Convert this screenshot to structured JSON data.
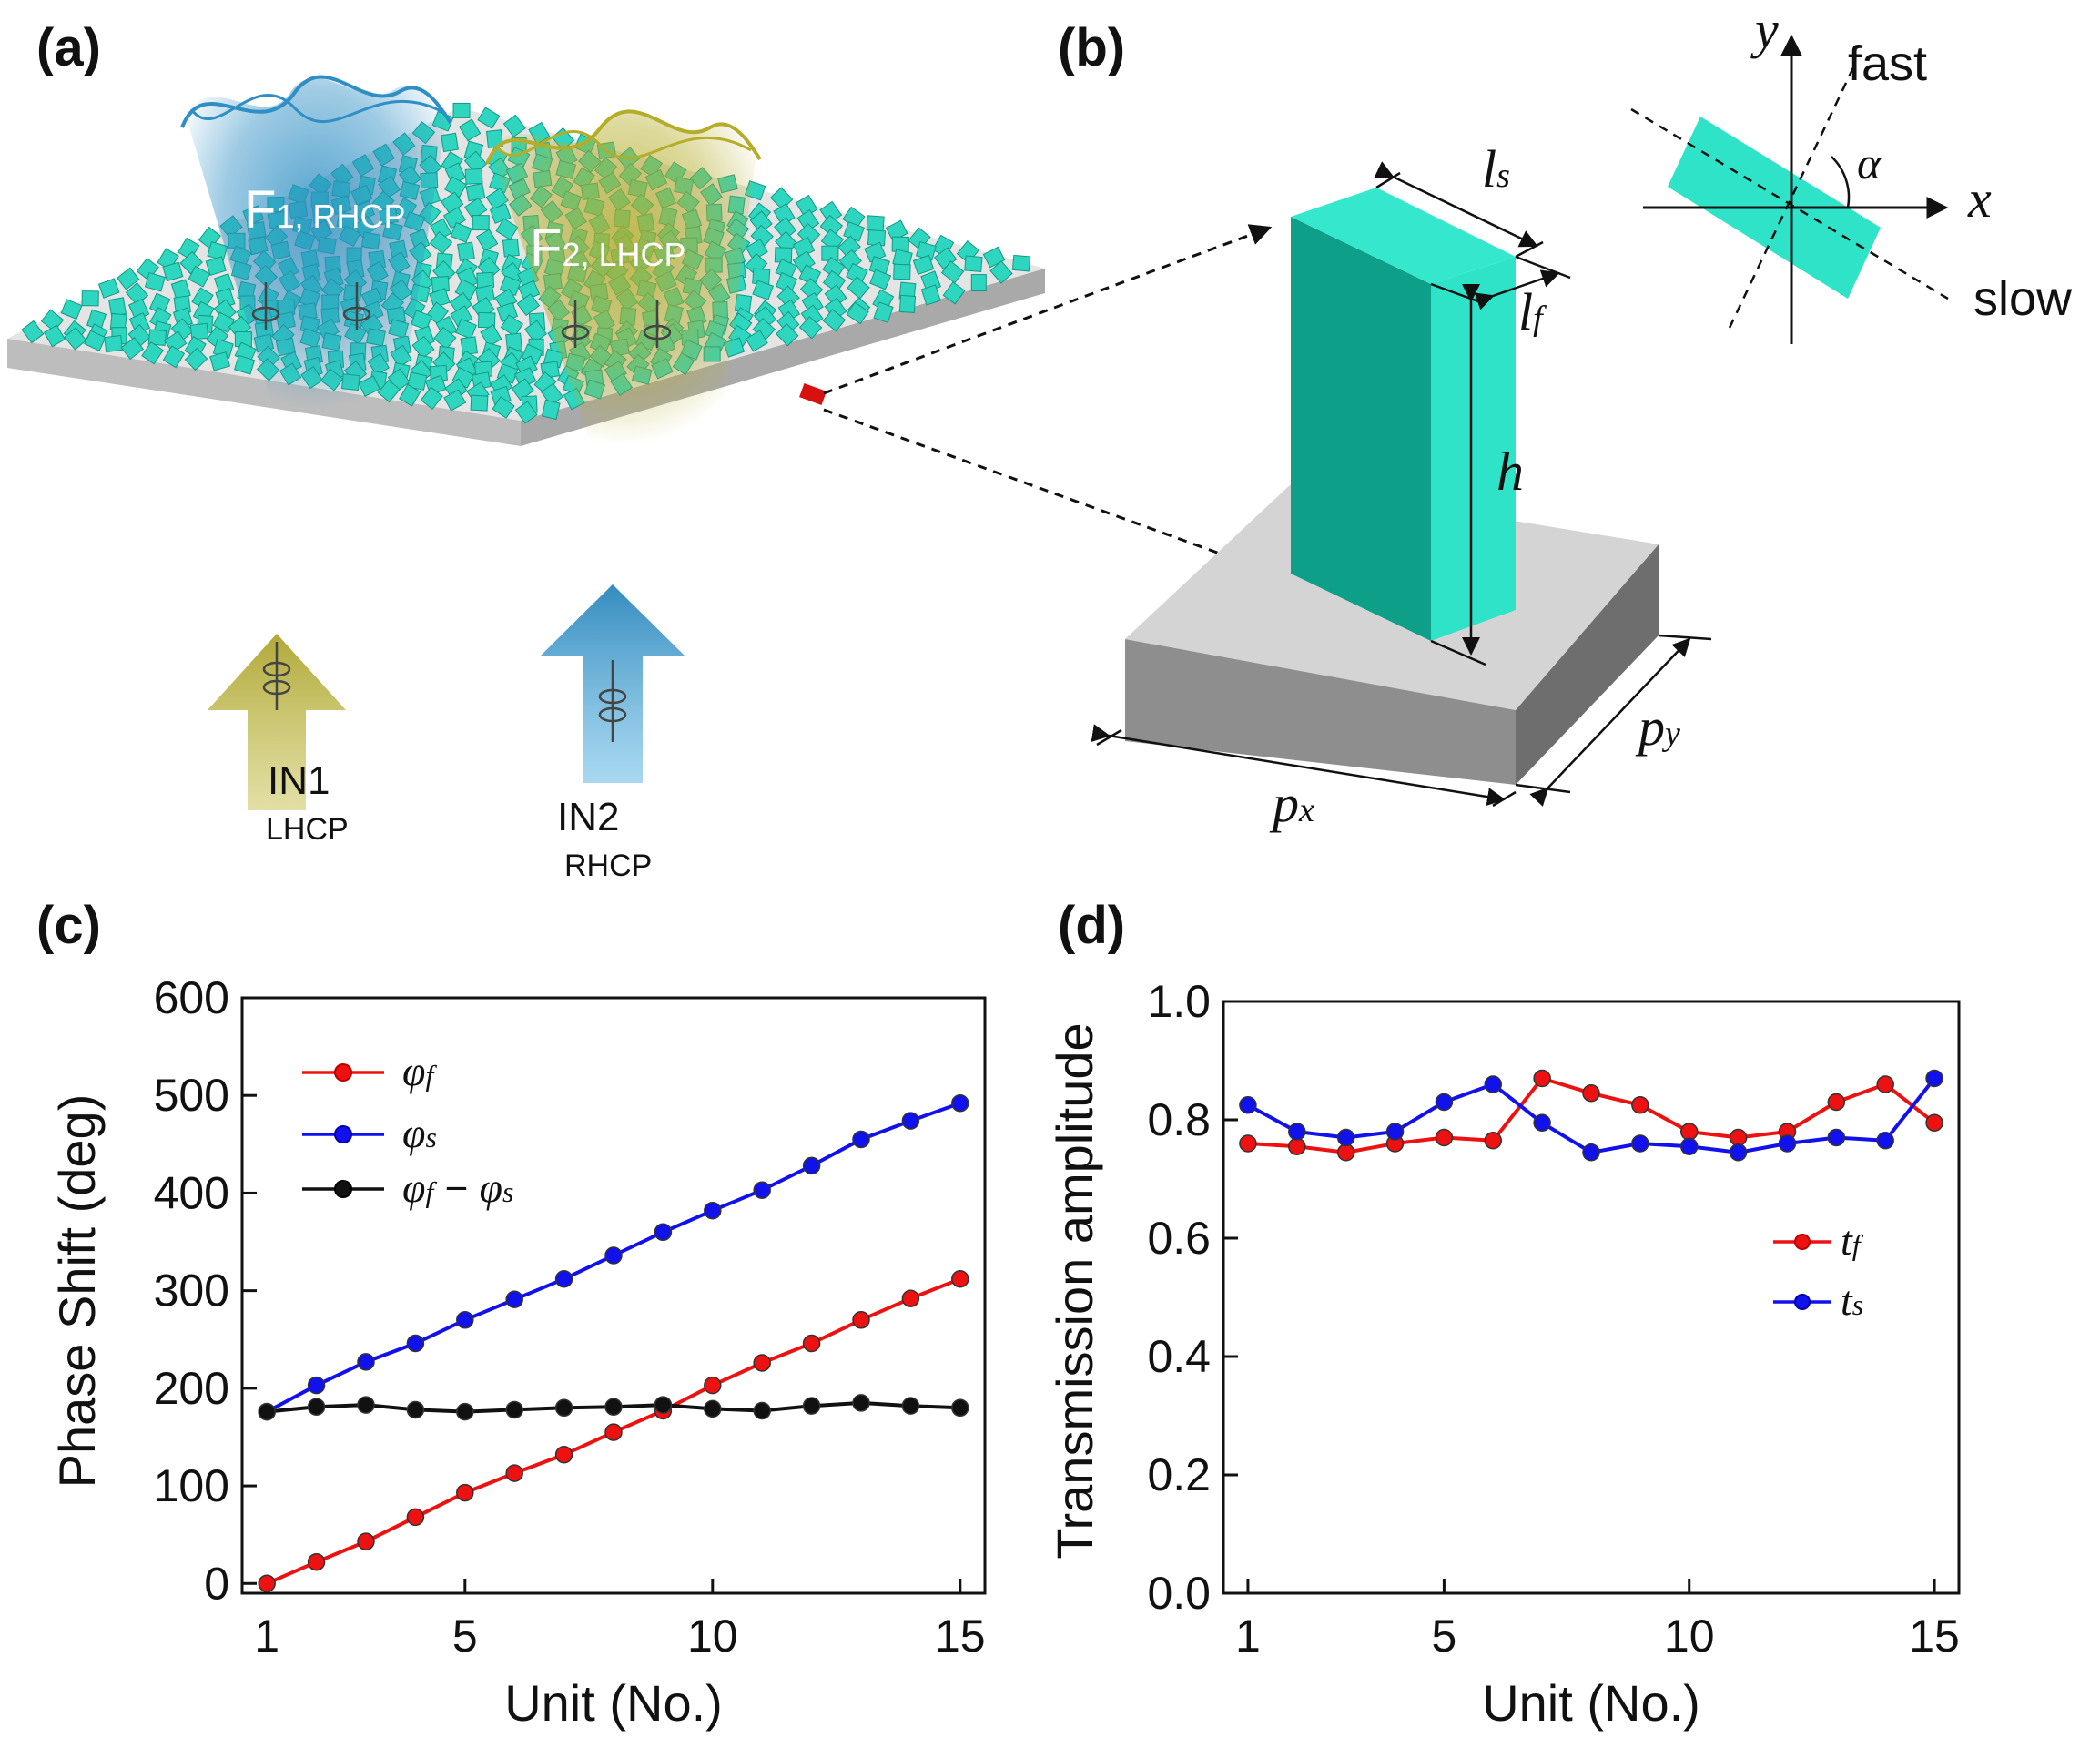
{
  "panel_labels": {
    "a": "(a)",
    "b": "(b)",
    "c": "(c)",
    "d": "(d)"
  },
  "panel_a": {
    "beam1": {
      "main": "F",
      "sub": "1, RHCP"
    },
    "beam2": {
      "main": "F",
      "sub": "2, LHCP"
    },
    "input1": {
      "name": "IN1",
      "pol": "LHCP"
    },
    "input2": {
      "name": "IN2",
      "pol": "RHCP"
    },
    "colors": {
      "pillar": "#2ed6bf",
      "beam1": "#2f8fc4",
      "beam2": "#b5ad2a",
      "substrate": "#cfcfcf",
      "highlight": "#d81010"
    }
  },
  "panel_b": {
    "labels": {
      "ls_main": "l",
      "ls_sub": "s",
      "lf_main": "l",
      "lf_sub": "f",
      "h": "h",
      "px_main": "p",
      "px_sub": "x",
      "py_main": "p",
      "py_sub": "y"
    },
    "axes": {
      "y": "y",
      "x": "x",
      "fast": "fast",
      "slow": "slow",
      "alpha": "α"
    }
  },
  "chart_data": [
    {
      "type": "line",
      "panel": "c",
      "xlabel": "Unit (No.)",
      "ylabel": "Phase Shift (deg)",
      "xlim": [
        0.5,
        15.5
      ],
      "ylim": [
        -10,
        600
      ],
      "xticks": [
        1,
        5,
        10,
        15
      ],
      "yticks": [
        0,
        100,
        200,
        300,
        400,
        500,
        600
      ],
      "grid": false,
      "legend": "top-left",
      "x": [
        1,
        2,
        3,
        4,
        5,
        6,
        7,
        8,
        9,
        10,
        11,
        12,
        13,
        14,
        15
      ],
      "series": [
        {
          "name": "φf",
          "name_main": "φ",
          "name_sub": "f",
          "color": "#ee1111",
          "values": [
            0,
            22,
            43,
            68,
            93,
            113,
            132,
            155,
            177,
            203,
            226,
            246,
            270,
            292,
            312
          ]
        },
        {
          "name": "φs",
          "name_main": "φ",
          "name_sub": "s",
          "color": "#1111ee",
          "values": [
            176,
            203,
            227,
            246,
            270,
            291,
            312,
            336,
            360,
            382,
            403,
            428,
            455,
            474,
            492
          ]
        },
        {
          "name": "φf − φs",
          "name_main": "φ",
          "name_sub": "f",
          "name_mid": " − ",
          "name_main2": "φ",
          "name_sub2": "s",
          "color": "#111111",
          "values": [
            176,
            181,
            183,
            178,
            176,
            178,
            180,
            181,
            183,
            179,
            177,
            182,
            185,
            182,
            180
          ]
        }
      ]
    },
    {
      "type": "line",
      "panel": "d",
      "xlabel": "Unit (No.)",
      "ylabel": "Transmission amplitude",
      "xlim": [
        0.5,
        15.5
      ],
      "ylim": [
        0.0,
        1.0
      ],
      "xticks": [
        1,
        5,
        10,
        15
      ],
      "yticks": [
        0.0,
        0.2,
        0.4,
        0.6,
        0.8,
        1.0
      ],
      "ytick_labels": [
        "0.0",
        "0.2",
        "0.4",
        "0.6",
        "0.8",
        "1.0"
      ],
      "grid": false,
      "legend": "center-right",
      "x": [
        1,
        2,
        3,
        4,
        5,
        6,
        7,
        8,
        9,
        10,
        11,
        12,
        13,
        14,
        15
      ],
      "series": [
        {
          "name": "tf",
          "name_main": "t",
          "name_sub": "f",
          "color": "#ee1111",
          "values": [
            0.76,
            0.755,
            0.745,
            0.76,
            0.77,
            0.765,
            0.87,
            0.845,
            0.825,
            0.78,
            0.77,
            0.78,
            0.83,
            0.86,
            0.795
          ]
        },
        {
          "name": "ts",
          "name_main": "t",
          "name_sub": "s",
          "color": "#1111ee",
          "values": [
            0.825,
            0.78,
            0.77,
            0.78,
            0.83,
            0.86,
            0.795,
            0.745,
            0.76,
            0.755,
            0.745,
            0.76,
            0.77,
            0.765,
            0.87
          ]
        }
      ]
    }
  ]
}
